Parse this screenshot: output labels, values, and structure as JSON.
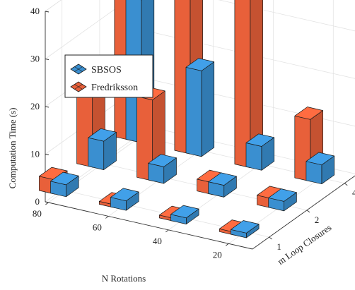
{
  "chart_data": {
    "type": "bar3d",
    "x_axis": {
      "label": "N Rotations",
      "ticks": [
        20,
        40,
        60,
        80
      ]
    },
    "y_axis": {
      "label": "m Loop Closures",
      "ticks": [
        1,
        2,
        4
      ]
    },
    "z_axis": {
      "label": "Computation Time (s)",
      "ticks": [
        0,
        10,
        20,
        30,
        40
      ],
      "zlim": [
        0,
        40
      ]
    },
    "legend": {
      "position": "top-left",
      "entries": [
        "SBSOS",
        "Fredriksson"
      ]
    },
    "series": [
      {
        "name": "SBSOS",
        "color": "#3a8fd0",
        "points": [
          {
            "N": 80,
            "m": 1,
            "value": 2.5
          },
          {
            "N": 80,
            "m": 2,
            "value": 6
          },
          {
            "N": 80,
            "m": 4,
            "value": 30
          },
          {
            "N": 60,
            "m": 1,
            "value": 2
          },
          {
            "N": 60,
            "m": 2,
            "value": 3.5
          },
          {
            "N": 60,
            "m": 4,
            "value": 18
          },
          {
            "N": 40,
            "m": 1,
            "value": 1.3
          },
          {
            "N": 40,
            "m": 2,
            "value": 2.5
          },
          {
            "N": 40,
            "m": 4,
            "value": 5
          },
          {
            "N": 20,
            "m": 1,
            "value": 1
          },
          {
            "N": 20,
            "m": 2,
            "value": 2
          },
          {
            "N": 20,
            "m": 4,
            "value": 4
          }
        ]
      },
      {
        "name": "Fredriksson",
        "color": "#e8603a",
        "points": [
          {
            "N": 80,
            "m": 1,
            "value": 3
          },
          {
            "N": 80,
            "m": 2,
            "value": 20
          },
          {
            "N": 80,
            "m": 4,
            "value": 46
          },
          {
            "N": 60,
            "m": 1,
            "value": 0.6
          },
          {
            "N": 60,
            "m": 2,
            "value": 17
          },
          {
            "N": 60,
            "m": 4,
            "value": 47
          },
          {
            "N": 40,
            "m": 1,
            "value": 0.6
          },
          {
            "N": 40,
            "m": 2,
            "value": 2.5
          },
          {
            "N": 40,
            "m": 4,
            "value": 45
          },
          {
            "N": 20,
            "m": 1,
            "value": 0.6
          },
          {
            "N": 20,
            "m": 2,
            "value": 2
          },
          {
            "N": 20,
            "m": 4,
            "value": 13
          }
        ]
      }
    ]
  }
}
